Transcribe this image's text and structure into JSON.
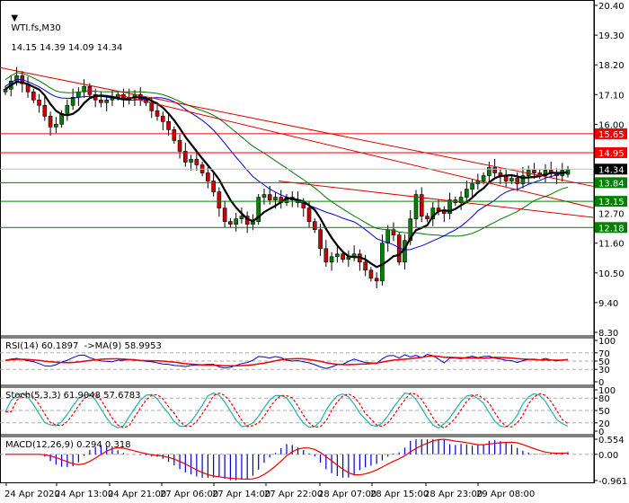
{
  "header": {
    "symbol": "WTI.fs,M30",
    "ohlc": "14.15 14.39 14.09 14.34",
    "rsi_label": "RSI(14) 60.1897  ->MA(9) 58.9953",
    "stoch_label": "Stoch(5,3,3) 61.9048 57.6783",
    "macd_label": "MACD(12,26,9) 0.294 0.318"
  },
  "colors": {
    "bull": "#008000",
    "bear": "#cc0000",
    "ma_fast": "#000000",
    "ma_mid": "#0000cc",
    "ma_slow": "#007700",
    "trend": "#dd0000",
    "resistance": "#ee0000",
    "support": "#008000",
    "current": "#000000",
    "rsi": "#0000cc",
    "rsi_ma": "#ee0000",
    "stoch_k": "#20b2aa",
    "stoch_d": "#ee0000",
    "macd_hist": "#0000cc",
    "macd_signal": "#ee0000"
  },
  "chart_data": [
    {
      "type": "candlestick",
      "title": "WTI.fs,M30",
      "ylim": [
        8.3,
        20.4
      ],
      "yticks": [
        20.4,
        19.3,
        18.2,
        17.1,
        16.0,
        11.6,
        10.5,
        9.4,
        8.3
      ],
      "xticks": [
        "24 Apr 2020",
        "24 Apr 13:00",
        "24 Apr 21:00",
        "27 Apr 06:00",
        "27 Apr 14:00",
        "27 Apr 22:00",
        "28 Apr 07:00",
        "28 Apr 15:00",
        "28 Apr 23:00",
        "29 Apr 08:00"
      ],
      "horizontal_levels": [
        {
          "price": 15.65,
          "label": "15.65",
          "role": "resistance"
        },
        {
          "price": 14.95,
          "label": "14.95",
          "role": "resistance"
        },
        {
          "price": 14.34,
          "label": "14.34",
          "role": "current"
        },
        {
          "price": 13.84,
          "label": "13.84",
          "role": "support"
        },
        {
          "price": 13.15,
          "label": "13.15",
          "role": "support"
        },
        {
          "price": 12.18,
          "label": "12.18",
          "role": "support"
        }
      ],
      "extra_tick": "12.70",
      "last_ohlc": {
        "open": 14.15,
        "high": 14.39,
        "low": 14.09,
        "close": 14.34
      },
      "closes": [
        17.3,
        17.6,
        17.8,
        17.5,
        17.2,
        16.9,
        16.7,
        16.3,
        15.9,
        16.0,
        16.4,
        16.7,
        17.0,
        17.2,
        17.4,
        17.1,
        16.9,
        16.8,
        16.9,
        17.0,
        17.1,
        16.9,
        17.0,
        17.1,
        16.9,
        16.8,
        16.5,
        16.3,
        16.1,
        15.8,
        15.4,
        15.0,
        14.6,
        14.7,
        14.5,
        14.2,
        13.9,
        13.5,
        12.9,
        12.4,
        12.3,
        12.5,
        12.6,
        12.3,
        12.4,
        13.3,
        13.4,
        13.2,
        13.3,
        13.1,
        13.3,
        13.2,
        13.1,
        12.9,
        12.4,
        12.1,
        11.4,
        10.9,
        11.1,
        11.2,
        11.0,
        11.1,
        11.2,
        10.9,
        10.6,
        10.3,
        10.2,
        11.6,
        12.1,
        11.9,
        10.9,
        11.7,
        12.5,
        13.4,
        12.6,
        12.5,
        12.9,
        12.8,
        12.7,
        13.2,
        13.1,
        13.3,
        13.6,
        13.8,
        13.9,
        14.1,
        14.4,
        14.2,
        14.1,
        13.9,
        14.0,
        13.8,
        14.1,
        14.3,
        14.2,
        14.1,
        14.3,
        14.2,
        14.1,
        14.3,
        14.34
      ]
    },
    {
      "type": "line",
      "title": "RSI(14)",
      "ylim": [
        0,
        100
      ],
      "yticks": [
        100,
        70,
        50,
        30,
        0
      ],
      "series": [
        {
          "name": "RSI(14)",
          "last": 60.1897
        },
        {
          "name": "MA(9)",
          "last": 58.9953
        }
      ]
    },
    {
      "type": "line",
      "title": "Stoch(5,3,3)",
      "ylim": [
        0,
        100
      ],
      "yticks": [
        100,
        80,
        50,
        20,
        0
      ],
      "series": [
        {
          "name": "%K",
          "last": 61.9048
        },
        {
          "name": "%D",
          "last": 57.6783
        }
      ]
    },
    {
      "type": "bar",
      "title": "MACD(12,26,9)",
      "ylim": [
        -0.961,
        0.554
      ],
      "yticks": [
        0.554,
        0.0,
        -0.961
      ],
      "series": [
        {
          "name": "MACD",
          "last": 0.294
        },
        {
          "name": "Signal",
          "last": 0.318
        }
      ]
    }
  ]
}
